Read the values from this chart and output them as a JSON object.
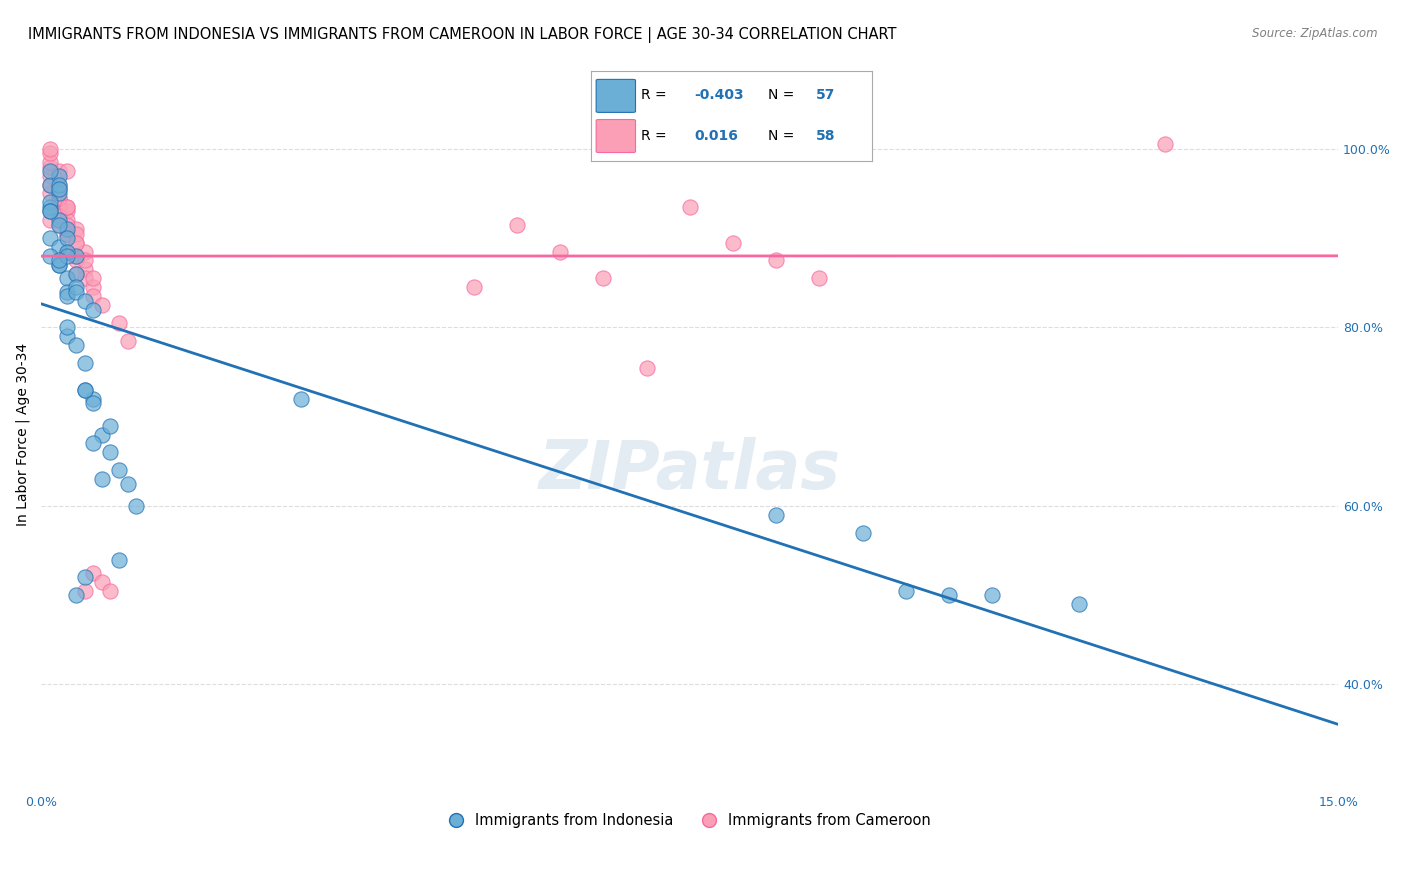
{
  "title": "IMMIGRANTS FROM INDONESIA VS IMMIGRANTS FROM CAMEROON IN LABOR FORCE | AGE 30-34 CORRELATION CHART",
  "source": "Source: ZipAtlas.com",
  "ylabel": "In Labor Force | Age 30-34",
  "xlim": [
    0.0,
    0.15
  ],
  "ylim": [
    0.28,
    1.08
  ],
  "ytick_positions": [
    0.4,
    0.6,
    0.8,
    1.0
  ],
  "ytick_labels": [
    "40.0%",
    "60.0%",
    "80.0%",
    "100.0%"
  ],
  "legend_R_indonesia": "-0.403",
  "legend_N_indonesia": "57",
  "legend_R_cameroon": "0.016",
  "legend_N_cameroon": "58",
  "blue_color": "#6baed6",
  "pink_color": "#fa9fb5",
  "blue_line_color": "#2171b5",
  "pink_line_color": "#f768a1",
  "indonesia_x": [
    0.001,
    0.001,
    0.002,
    0.002,
    0.001,
    0.002,
    0.003,
    0.001,
    0.002,
    0.001,
    0.001,
    0.002,
    0.002,
    0.003,
    0.001,
    0.002,
    0.003,
    0.004,
    0.002,
    0.001,
    0.003,
    0.002,
    0.003,
    0.004,
    0.003,
    0.004,
    0.005,
    0.006,
    0.003,
    0.002,
    0.004,
    0.005,
    0.003,
    0.006,
    0.005,
    0.007,
    0.004,
    0.008,
    0.005,
    0.006,
    0.003,
    0.009,
    0.006,
    0.01,
    0.011,
    0.008,
    0.007,
    0.004,
    0.005,
    0.009,
    0.085,
    0.095,
    0.1,
    0.105,
    0.11,
    0.12,
    0.03
  ],
  "indonesia_y": [
    0.935,
    0.96,
    0.97,
    0.95,
    0.94,
    0.92,
    0.91,
    0.9,
    0.89,
    0.88,
    0.975,
    0.96,
    0.87,
    0.855,
    0.93,
    0.915,
    0.9,
    0.88,
    0.955,
    0.93,
    0.885,
    0.87,
    0.84,
    0.86,
    0.835,
    0.845,
    0.76,
    0.72,
    0.88,
    0.875,
    0.84,
    0.83,
    0.79,
    0.82,
    0.73,
    0.68,
    0.78,
    0.69,
    0.73,
    0.715,
    0.8,
    0.64,
    0.67,
    0.625,
    0.6,
    0.66,
    0.63,
    0.5,
    0.52,
    0.54,
    0.59,
    0.57,
    0.505,
    0.5,
    0.5,
    0.49,
    0.72
  ],
  "cameroon_x": [
    0.001,
    0.001,
    0.002,
    0.001,
    0.002,
    0.003,
    0.001,
    0.002,
    0.001,
    0.001,
    0.002,
    0.003,
    0.002,
    0.001,
    0.003,
    0.004,
    0.002,
    0.001,
    0.003,
    0.002,
    0.004,
    0.003,
    0.002,
    0.005,
    0.003,
    0.002,
    0.004,
    0.003,
    0.002,
    0.004,
    0.005,
    0.006,
    0.003,
    0.004,
    0.005,
    0.006,
    0.004,
    0.005,
    0.006,
    0.003,
    0.007,
    0.004,
    0.005,
    0.006,
    0.007,
    0.008,
    0.009,
    0.01,
    0.05,
    0.07,
    0.075,
    0.08,
    0.085,
    0.09,
    0.055,
    0.06,
    0.065,
    0.13
  ],
  "cameroon_y": [
    0.97,
    0.98,
    0.96,
    0.95,
    0.94,
    0.93,
    0.92,
    0.975,
    0.96,
    0.985,
    0.955,
    0.975,
    0.935,
    0.995,
    0.92,
    0.91,
    0.945,
    1.0,
    0.905,
    0.955,
    0.895,
    0.885,
    0.915,
    0.865,
    0.935,
    0.925,
    0.875,
    0.905,
    0.945,
    0.88,
    0.855,
    0.845,
    0.935,
    0.86,
    0.885,
    0.835,
    0.905,
    0.875,
    0.855,
    0.915,
    0.825,
    0.895,
    0.505,
    0.525,
    0.515,
    0.505,
    0.805,
    0.785,
    0.845,
    0.755,
    0.935,
    0.895,
    0.875,
    0.855,
    0.915,
    0.885,
    0.855,
    1.005
  ],
  "background_color": "#ffffff",
  "grid_color": "#dddddd",
  "title_fontsize": 10.5,
  "axis_label_fontsize": 10,
  "tick_fontsize": 9,
  "legend_fontsize": 11
}
